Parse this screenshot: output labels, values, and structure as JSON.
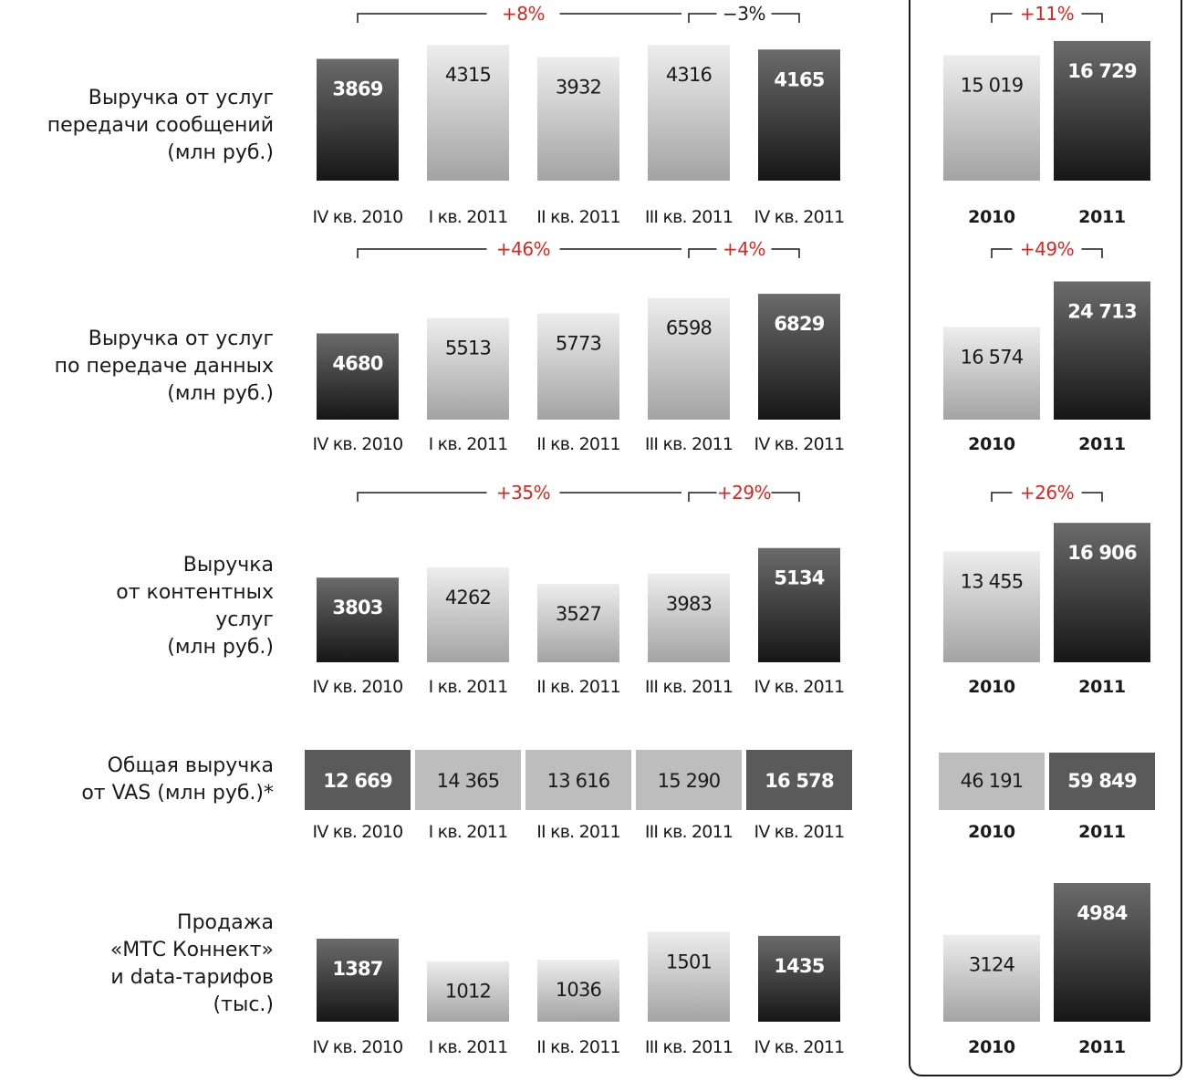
{
  "colors": {
    "dark_top": "#6b6b6b",
    "dark_bottom": "#161616",
    "light_top": "#ededed",
    "light_bottom": "#a3a3a3",
    "vas_dark": "#5a5a5a",
    "vas_light": "#bdbdbd",
    "growth": "#e0231c",
    "text": "#1a1a1a"
  },
  "quarter_labels": [
    "IV кв. 2010",
    "I кв. 2011",
    "II кв. 2011",
    "III кв. 2011",
    "IV кв. 2011"
  ],
  "year_labels": [
    "2010",
    "2011"
  ],
  "chart_data": [
    {
      "type": "bar",
      "title": "Выручка от услуг передачи сообщений (млн руб.)",
      "title_lines": [
        "Выручка от услуг",
        "передачи сообщений",
        "(млн руб.)"
      ],
      "categories": [
        "IV кв. 2010",
        "I кв. 2011",
        "II кв. 2011",
        "III кв. 2011",
        "IV кв. 2011"
      ],
      "values": [
        3869,
        4315,
        3932,
        4316,
        4165
      ],
      "value_labels": [
        "3869",
        "4315",
        "3932",
        "4316",
        "4165"
      ],
      "annual": {
        "categories": [
          "2010",
          "2011"
        ],
        "values": [
          15019,
          16729
        ],
        "value_labels": [
          "15 019",
          "16 729"
        ]
      },
      "growth": {
        "year_over_year": "+8%",
        "quarter_over_quarter": "−3%",
        "annual": "+11%"
      }
    },
    {
      "type": "bar",
      "title": "Выручка от услуг по передаче данных (млн руб.)",
      "title_lines": [
        "Выручка от услуг",
        "по передаче данных",
        "(млн руб.)"
      ],
      "categories": [
        "IV кв. 2010",
        "I кв. 2011",
        "II кв. 2011",
        "III кв. 2011",
        "IV кв. 2011"
      ],
      "values": [
        4680,
        5513,
        5773,
        6598,
        6829
      ],
      "value_labels": [
        "4680",
        "5513",
        "5773",
        "6598",
        "6829"
      ],
      "annual": {
        "categories": [
          "2010",
          "2011"
        ],
        "values": [
          16574,
          24713
        ],
        "value_labels": [
          "16 574",
          "24 713"
        ]
      },
      "growth": {
        "year_over_year": "+46%",
        "quarter_over_quarter": "+4%",
        "annual": "+49%"
      }
    },
    {
      "type": "bar",
      "title": "Выручка от контентных услуг (млн руб.)",
      "title_lines": [
        "Выручка",
        "от контентных",
        "услуг",
        "(млн руб.)"
      ],
      "categories": [
        "IV кв. 2010",
        "I кв. 2011",
        "II кв. 2011",
        "III кв. 2011",
        "IV кв. 2011"
      ],
      "values": [
        3803,
        4262,
        3527,
        3983,
        5134
      ],
      "value_labels": [
        "3803",
        "4262",
        "3527",
        "3983",
        "5134"
      ],
      "annual": {
        "categories": [
          "2010",
          "2011"
        ],
        "values": [
          13455,
          16906
        ],
        "value_labels": [
          "13 455",
          "16 906"
        ]
      },
      "growth": {
        "year_over_year": "+35%",
        "quarter_over_quarter": "+29%",
        "annual": "+26%"
      }
    },
    {
      "type": "table",
      "title": "Общая выручка от VAS (млн руб.)*",
      "title_lines": [
        "Общая выручка",
        "от VAS (млн руб.)*"
      ],
      "categories": [
        "IV кв. 2010",
        "I кв. 2011",
        "II кв. 2011",
        "III кв. 2011",
        "IV кв. 2011"
      ],
      "values": [
        12669,
        14365,
        13616,
        15290,
        16578
      ],
      "value_labels": [
        "12 669",
        "14 365",
        "13 616",
        "15 290",
        "16 578"
      ],
      "annual": {
        "categories": [
          "2010",
          "2011"
        ],
        "values": [
          46191,
          59849
        ],
        "value_labels": [
          "46 191",
          "59 849"
        ]
      }
    },
    {
      "type": "bar",
      "title": "Продажа «МТС Коннект» и data-тарифов (тыс.)",
      "title_lines": [
        "Продажа",
        "«МТС Коннект»",
        "и data-тарифов",
        "(тыс.)"
      ],
      "categories": [
        "IV кв. 2010",
        "I кв. 2011",
        "II кв. 2011",
        "III кв. 2011",
        "IV кв. 2011"
      ],
      "values": [
        1387,
        1012,
        1036,
        1501,
        1435
      ],
      "value_labels": [
        "1387",
        "1012",
        "1036",
        "1501",
        "1435"
      ],
      "annual": {
        "categories": [
          "2010",
          "2011"
        ],
        "values": [
          3124,
          4984
        ],
        "value_labels": [
          "3124",
          "4984"
        ]
      }
    }
  ]
}
